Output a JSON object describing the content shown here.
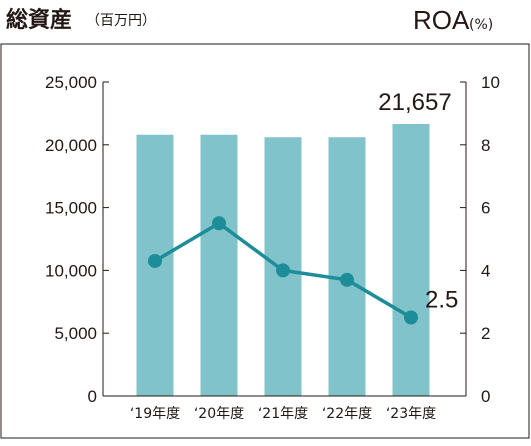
{
  "header": {
    "left_title": "総資産",
    "left_unit": "（百万円）",
    "right_title": "ROA",
    "right_unit": "(%)"
  },
  "chart_data": {
    "type": "bar",
    "categories": [
      "‘19年度",
      "‘20年度",
      "‘21年度",
      "‘22年度",
      "‘23年度"
    ],
    "series": [
      {
        "values": [
          20800,
          20800,
          20600,
          20600,
          21657
        ],
        "axis": "left",
        "render": "bar",
        "color": "#80c3ca"
      },
      {
        "values": [
          4.3,
          5.5,
          4.0,
          3.7,
          2.5
        ],
        "axis": "right",
        "render": "line",
        "color": "#1d8d99"
      }
    ],
    "y_left": {
      "lim": [
        0,
        25000
      ],
      "ticks": [
        0,
        5000,
        10000,
        15000,
        20000,
        25000
      ],
      "tick_labels": [
        "0",
        "5,000",
        "10,000",
        "15,000",
        "20,000",
        "25,000"
      ]
    },
    "y_right": {
      "lim": [
        0,
        10
      ],
      "ticks": [
        0,
        2,
        4,
        6,
        8,
        10
      ],
      "tick_labels": [
        "0",
        "2",
        "4",
        "6",
        "8",
        "10"
      ]
    },
    "annotations": [
      {
        "text": "21,657",
        "series": 0,
        "index": 4
      },
      {
        "text": "2.5",
        "series": 1,
        "index": 4
      }
    ],
    "grid": false,
    "legend": "none"
  }
}
